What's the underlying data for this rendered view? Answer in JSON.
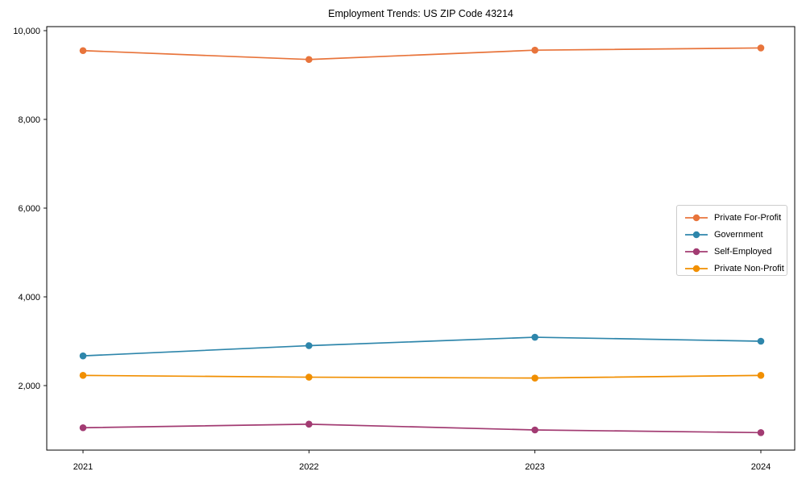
{
  "figure": {
    "background": "#ffffff",
    "axis_color": "#000000"
  },
  "chart_data": {
    "type": "line",
    "title": "Employment Trends: US ZIP Code 43214",
    "xlabel": "",
    "ylabel": "",
    "categories": [
      "2021",
      "2022",
      "2023",
      "2024"
    ],
    "series": [
      {
        "name": "Private For-Profit",
        "color": "#E8743B",
        "values": [
          9550,
          9350,
          9560,
          9610
        ]
      },
      {
        "name": "Government",
        "color": "#2E86AB",
        "values": [
          2670,
          2900,
          3090,
          3000
        ]
      },
      {
        "name": "Self-Employed",
        "color": "#A23B72",
        "values": [
          1050,
          1130,
          1000,
          940
        ]
      },
      {
        "name": "Private Non-Profit",
        "color": "#F18F01",
        "values": [
          2230,
          2190,
          2170,
          2230
        ]
      }
    ],
    "yticks": [
      2000,
      4000,
      6000,
      8000,
      10000
    ],
    "ytick_labels": [
      "2,000",
      "4,000",
      "6,000",
      "8,000",
      "10,000"
    ],
    "ylim": [
      545,
      10090
    ],
    "grid": false,
    "marker": "circle",
    "legend": {
      "position": "center-right",
      "border_color": "#cccccc"
    }
  }
}
